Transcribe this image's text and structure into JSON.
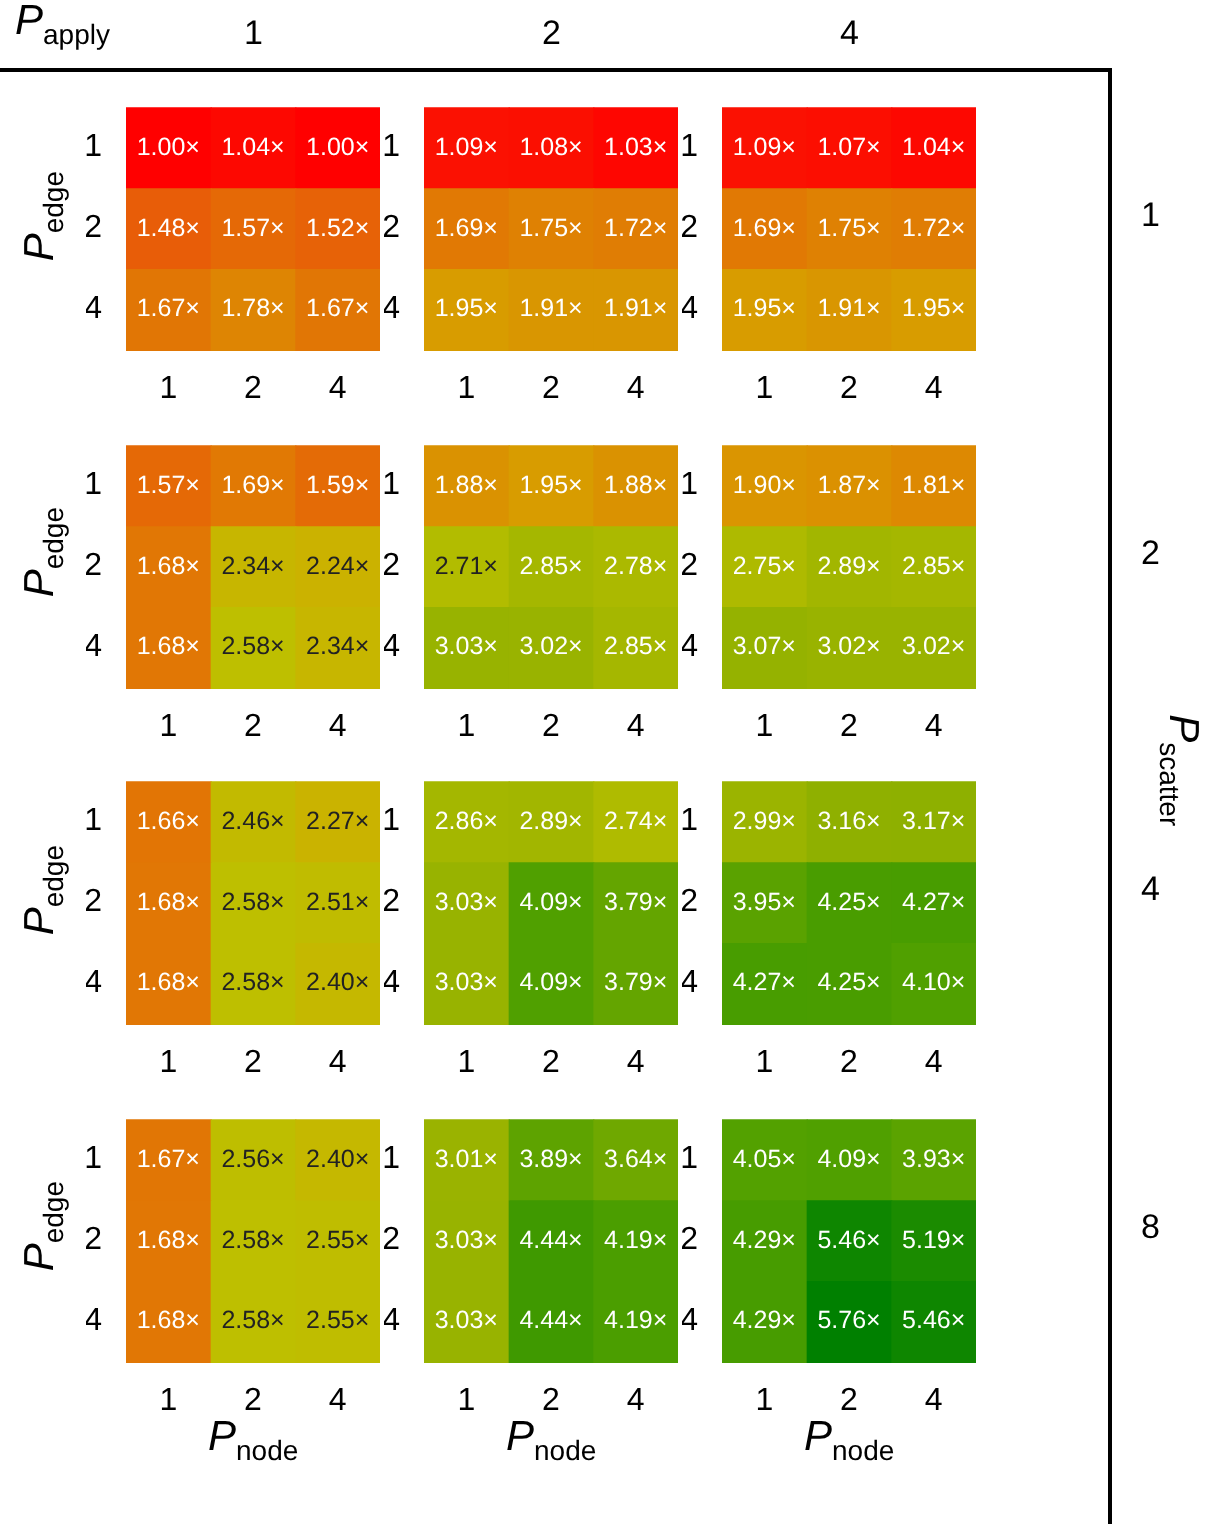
{
  "chart_data": [
    {
      "type": "heatmap",
      "title": "1",
      "ylabel": "P$_{edge}$",
      "annotations": [
        "P$_{apply}$"
      ],
      "categories": [
        "1",
        "2",
        "4"
      ],
      "y_categories": [
        "1",
        "2",
        "4"
      ],
      "cells": [
        [
          1.0,
          1.04,
          1.0
        ],
        [
          1.48,
          1.57,
          1.52
        ],
        [
          1.67,
          1.78,
          1.67
        ]
      ],
      "cell_labels": [
        [
          "1.00×",
          "1.04×",
          "1.00×"
        ],
        [
          "1.48×",
          "1.57×",
          "1.52×"
        ],
        [
          "1.67×",
          "1.78×",
          "1.67×"
        ]
      ]
    },
    {
      "type": "heatmap",
      "title": "2",
      "categories": [
        "1",
        "2",
        "4"
      ],
      "y_categories": [
        "1",
        "2",
        "4"
      ],
      "cells": [
        [
          1.09,
          1.08,
          1.03
        ],
        [
          1.69,
          1.75,
          1.72
        ],
        [
          1.95,
          1.91,
          1.91
        ]
      ],
      "cell_labels": [
        [
          "1.09×",
          "1.08×",
          "1.03×"
        ],
        [
          "1.69×",
          "1.75×",
          "1.72×"
        ],
        [
          "1.95×",
          "1.91×",
          "1.91×"
        ]
      ]
    },
    {
      "type": "heatmap",
      "title": "4",
      "y2label": "1",
      "categories": [
        "1",
        "2",
        "4"
      ],
      "y_categories": [
        "1",
        "2",
        "4"
      ],
      "cells": [
        [
          1.09,
          1.07,
          1.04
        ],
        [
          1.69,
          1.75,
          1.72
        ],
        [
          1.95,
          1.91,
          1.95
        ]
      ],
      "cell_labels": [
        [
          "1.09×",
          "1.07×",
          "1.04×"
        ],
        [
          "1.69×",
          "1.75×",
          "1.72×"
        ],
        [
          "1.95×",
          "1.91×",
          "1.95×"
        ]
      ]
    },
    {
      "type": "heatmap",
      "ylabel": "P$_{edge}$",
      "categories": [
        "1",
        "2",
        "4"
      ],
      "y_categories": [
        "1",
        "2",
        "4"
      ],
      "cells": [
        [
          1.57,
          1.69,
          1.59
        ],
        [
          1.68,
          2.34,
          2.24
        ],
        [
          1.68,
          2.58,
          2.34
        ]
      ],
      "cell_labels": [
        [
          "1.57×",
          "1.69×",
          "1.59×"
        ],
        [
          "1.68×",
          "2.34×",
          "2.24×"
        ],
        [
          "1.68×",
          "2.58×",
          "2.34×"
        ]
      ]
    },
    {
      "type": "heatmap",
      "categories": [
        "1",
        "2",
        "4"
      ],
      "y_categories": [
        "1",
        "2",
        "4"
      ],
      "cells": [
        [
          1.88,
          1.95,
          1.88
        ],
        [
          2.71,
          2.85,
          2.78
        ],
        [
          3.03,
          3.02,
          2.85
        ]
      ],
      "cell_labels": [
        [
          "1.88×",
          "1.95×",
          "1.88×"
        ],
        [
          "2.71×",
          "2.85×",
          "2.78×"
        ],
        [
          "3.03×",
          "3.02×",
          "2.85×"
        ]
      ]
    },
    {
      "type": "heatmap",
      "y2label": "2",
      "annotations": [
        "P$_{scatter}$"
      ],
      "categories": [
        "1",
        "2",
        "4"
      ],
      "y_categories": [
        "1",
        "2",
        "4"
      ],
      "cells": [
        [
          1.9,
          1.87,
          1.81
        ],
        [
          2.75,
          2.89,
          2.85
        ],
        [
          3.07,
          3.02,
          3.02
        ]
      ],
      "cell_labels": [
        [
          "1.90×",
          "1.87×",
          "1.81×"
        ],
        [
          "2.75×",
          "2.89×",
          "2.85×"
        ],
        [
          "3.07×",
          "3.02×",
          "3.02×"
        ]
      ]
    },
    {
      "type": "heatmap",
      "ylabel": "P$_{edge}$",
      "categories": [
        "1",
        "2",
        "4"
      ],
      "y_categories": [
        "1",
        "2",
        "4"
      ],
      "cells": [
        [
          1.66,
          2.46,
          2.27
        ],
        [
          1.68,
          2.58,
          2.51
        ],
        [
          1.68,
          2.58,
          2.4
        ]
      ],
      "cell_labels": [
        [
          "1.66×",
          "2.46×",
          "2.27×"
        ],
        [
          "1.68×",
          "2.58×",
          "2.51×"
        ],
        [
          "1.68×",
          "2.58×",
          "2.40×"
        ]
      ]
    },
    {
      "type": "heatmap",
      "categories": [
        "1",
        "2",
        "4"
      ],
      "y_categories": [
        "1",
        "2",
        "4"
      ],
      "cells": [
        [
          2.86,
          2.89,
          2.74
        ],
        [
          3.03,
          4.09,
          3.79
        ],
        [
          3.03,
          4.09,
          3.79
        ]
      ],
      "cell_labels": [
        [
          "2.86×",
          "2.89×",
          "2.74×"
        ],
        [
          "3.03×",
          "4.09×",
          "3.79×"
        ],
        [
          "3.03×",
          "4.09×",
          "3.79×"
        ]
      ]
    },
    {
      "type": "heatmap",
      "y2label": "4",
      "categories": [
        "1",
        "2",
        "4"
      ],
      "y_categories": [
        "1",
        "2",
        "4"
      ],
      "cells": [
        [
          2.99,
          3.16,
          3.17
        ],
        [
          3.95,
          4.25,
          4.27
        ],
        [
          4.27,
          4.25,
          4.1
        ]
      ],
      "cell_labels": [
        [
          "2.99×",
          "3.16×",
          "3.17×"
        ],
        [
          "3.95×",
          "4.25×",
          "4.27×"
        ],
        [
          "4.27×",
          "4.25×",
          "4.10×"
        ]
      ]
    },
    {
      "type": "heatmap",
      "ylabel": "P$_{edge}$",
      "xlabel": "P$_{node}$",
      "categories": [
        "1",
        "2",
        "4"
      ],
      "y_categories": [
        "1",
        "2",
        "4"
      ],
      "cells": [
        [
          1.67,
          2.56,
          2.4
        ],
        [
          1.68,
          2.58,
          2.55
        ],
        [
          1.68,
          2.58,
          2.55
        ]
      ],
      "cell_labels": [
        [
          "1.67×",
          "2.56×",
          "2.40×"
        ],
        [
          "1.68×",
          "2.58×",
          "2.55×"
        ],
        [
          "1.68×",
          "2.58×",
          "2.55×"
        ]
      ]
    },
    {
      "type": "heatmap",
      "xlabel": "P$_{node}$",
      "categories": [
        "1",
        "2",
        "4"
      ],
      "y_categories": [
        "1",
        "2",
        "4"
      ],
      "cells": [
        [
          3.01,
          3.89,
          3.64
        ],
        [
          3.03,
          4.44,
          4.19
        ],
        [
          3.03,
          4.44,
          4.19
        ]
      ],
      "cell_labels": [
        [
          "3.01×",
          "3.89×",
          "3.64×"
        ],
        [
          "3.03×",
          "4.44×",
          "4.19×"
        ],
        [
          "3.03×",
          "4.44×",
          "4.19×"
        ]
      ]
    },
    {
      "type": "heatmap",
      "xlabel": "P$_{node}$",
      "y2label": "8",
      "categories": [
        "1",
        "2",
        "4"
      ],
      "y_categories": [
        "1",
        "2",
        "4"
      ],
      "cells": [
        [
          4.05,
          4.09,
          3.93
        ],
        [
          4.29,
          5.46,
          5.19
        ],
        [
          4.29,
          5.76,
          5.46
        ]
      ],
      "cell_labels": [
        [
          "4.05×",
          "4.09×",
          "3.93×"
        ],
        [
          "4.29×",
          "5.46×",
          "5.19×"
        ],
        [
          "4.29×",
          "5.76×",
          "5.46×"
        ]
      ]
    }
  ]
}
